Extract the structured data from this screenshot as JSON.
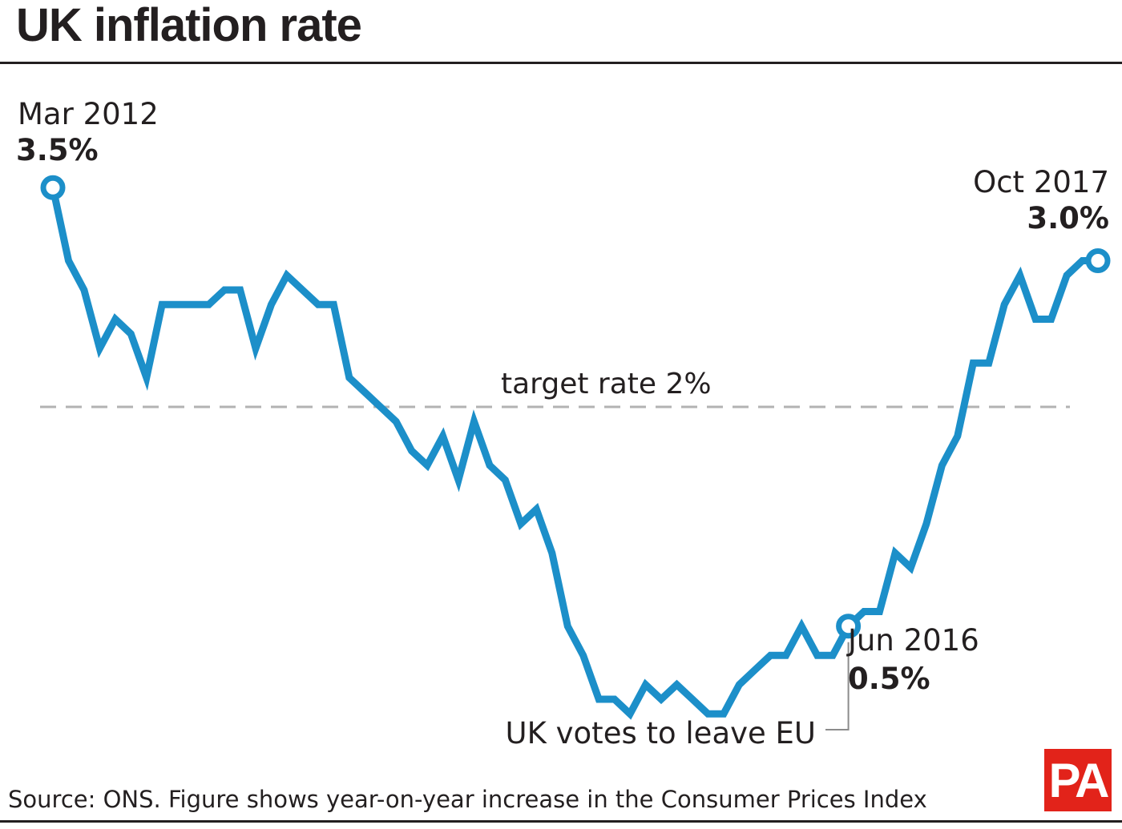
{
  "title": "UK inflation rate",
  "source": "Source: ONS. Figure shows year-on-year increase in the Consumer Prices Index",
  "logo": "PA",
  "colors": {
    "line": "#1c8fc9",
    "target": "#b3b3b3",
    "text": "#231f20",
    "logo": "#e2231a"
  },
  "annotations": {
    "start": {
      "label": "Mar 2012",
      "value": "3.5%"
    },
    "end": {
      "label": "Oct 2017",
      "value": "3.0%"
    },
    "brexit": {
      "label": "Jun 2016",
      "value": "0.5%",
      "note": "UK votes to leave EU"
    },
    "target": "target rate 2%"
  },
  "chart_data": {
    "type": "line",
    "title": "UK inflation rate",
    "xlabel": "",
    "ylabel": "",
    "x_range": [
      "2012-03",
      "2017-10"
    ],
    "x": [
      "2012-03",
      "2012-04",
      "2012-05",
      "2012-06",
      "2012-07",
      "2012-08",
      "2012-09",
      "2012-10",
      "2012-11",
      "2012-12",
      "2013-01",
      "2013-02",
      "2013-03",
      "2013-04",
      "2013-05",
      "2013-06",
      "2013-07",
      "2013-08",
      "2013-09",
      "2013-10",
      "2013-11",
      "2013-12",
      "2014-01",
      "2014-02",
      "2014-03",
      "2014-04",
      "2014-05",
      "2014-06",
      "2014-07",
      "2014-08",
      "2014-09",
      "2014-10",
      "2014-11",
      "2014-12",
      "2015-01",
      "2015-02",
      "2015-03",
      "2015-04",
      "2015-05",
      "2015-06",
      "2015-07",
      "2015-08",
      "2015-09",
      "2015-10",
      "2015-11",
      "2015-12",
      "2016-01",
      "2016-02",
      "2016-03",
      "2016-04",
      "2016-05",
      "2016-06",
      "2016-07",
      "2016-08",
      "2016-09",
      "2016-10",
      "2016-11",
      "2016-12",
      "2017-01",
      "2017-02",
      "2017-03",
      "2017-04",
      "2017-05",
      "2017-06",
      "2017-07",
      "2017-08",
      "2017-09",
      "2017-10"
    ],
    "series": [
      {
        "values": [
          3.5,
          3.0,
          2.8,
          2.4,
          2.6,
          2.5,
          2.2,
          2.7,
          2.7,
          2.7,
          2.7,
          2.8,
          2.8,
          2.4,
          2.7,
          2.9,
          2.8,
          2.7,
          2.7,
          2.2,
          2.1,
          2.0,
          1.9,
          1.7,
          1.6,
          1.8,
          1.5,
          1.9,
          1.6,
          1.5,
          1.2,
          1.3,
          1.0,
          0.5,
          0.3,
          0.0,
          0.0,
          -0.1,
          0.1,
          0.0,
          0.1,
          0.0,
          -0.1,
          -0.1,
          0.1,
          0.2,
          0.3,
          0.3,
          0.5,
          0.3,
          0.3,
          0.5,
          0.6,
          0.6,
          1.0,
          0.9,
          1.2,
          1.6,
          1.8,
          2.3,
          2.3,
          2.7,
          2.9,
          2.6,
          2.6,
          2.9,
          3.0,
          3.0
        ]
      }
    ],
    "reference_lines": [
      {
        "label": "target rate 2%",
        "value": 2.0
      }
    ],
    "highlights": [
      {
        "x": "2012-03",
        "value": 3.5
      },
      {
        "x": "2016-06",
        "value": 0.5
      },
      {
        "x": "2017-10",
        "value": 3.0
      }
    ],
    "grid": false,
    "legend": "none"
  }
}
